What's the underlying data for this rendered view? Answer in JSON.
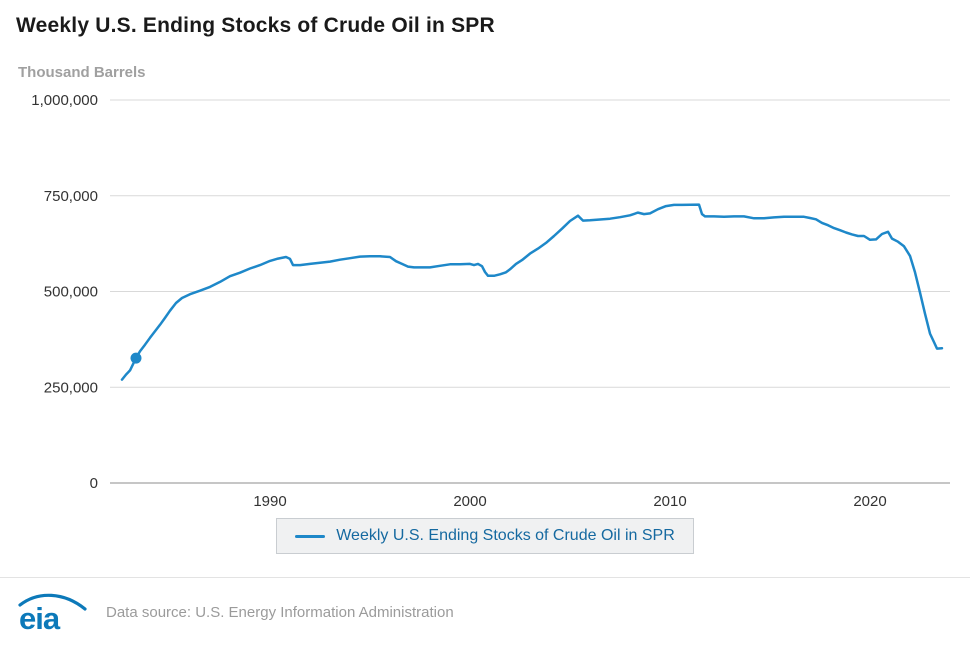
{
  "page": {
    "title": "Weekly U.S. Ending Stocks of Crude Oil in SPR",
    "y_axis_title": "Thousand Barrels"
  },
  "legend": {
    "label": "Weekly U.S. Ending Stocks of Crude Oil in SPR"
  },
  "footer": {
    "logo_text": "eia",
    "source_text": "Data source: U.S. Energy Information Administration"
  },
  "colors": {
    "line": "#1e88c9",
    "grid": "#d9d9d9",
    "axis": "#8c8c8c",
    "tick_text": "#333333",
    "legend_text": "#1569a0",
    "legend_bg": "#f0f1f2",
    "legend_border": "#c9cdd1",
    "muted_text": "#9b9b9b",
    "logo_blue": "#0c79b9"
  },
  "chart_data": {
    "type": "line",
    "title": "Weekly U.S. Ending Stocks of Crude Oil in SPR",
    "xlabel": "",
    "ylabel": "Thousand Barrels",
    "xlim": [
      1982,
      2024
    ],
    "ylim": [
      0,
      1000000
    ],
    "grid": "horizontal",
    "legend_position": "bottom",
    "x_ticks": [
      "1990",
      "2000",
      "2010",
      "2020"
    ],
    "x_tick_values": [
      1990,
      2000,
      2010,
      2020
    ],
    "y_ticks": [
      {
        "value": 0,
        "label": "0"
      },
      {
        "value": 250000,
        "label": "250,000"
      },
      {
        "value": 500000,
        "label": "500,000"
      },
      {
        "value": 750000,
        "label": "750,000"
      },
      {
        "value": 1000000,
        "label": "1,000,000"
      }
    ],
    "marker_point": {
      "year": 1983.3,
      "value": 326000
    },
    "series": [
      {
        "name": "Weekly U.S. Ending Stocks of Crude Oil in SPR",
        "color": "#1e88c9",
        "points": [
          [
            1982.6,
            270000
          ],
          [
            1982.8,
            283000
          ],
          [
            1983.0,
            294000
          ],
          [
            1983.3,
            326000
          ],
          [
            1983.5,
            344000
          ],
          [
            1983.75,
            361000
          ],
          [
            1984.0,
            379000
          ],
          [
            1984.25,
            396000
          ],
          [
            1984.5,
            413000
          ],
          [
            1984.75,
            431000
          ],
          [
            1985.0,
            450000
          ],
          [
            1985.3,
            470000
          ],
          [
            1985.6,
            483000
          ],
          [
            1986.0,
            493000
          ],
          [
            1986.5,
            502000
          ],
          [
            1987.0,
            512000
          ],
          [
            1987.5,
            525000
          ],
          [
            1988.0,
            540000
          ],
          [
            1988.5,
            549000
          ],
          [
            1989.0,
            560000
          ],
          [
            1989.5,
            569000
          ],
          [
            1990.0,
            580000
          ],
          [
            1990.4,
            586000
          ],
          [
            1990.8,
            590000
          ],
          [
            1991.0,
            585000
          ],
          [
            1991.15,
            569000
          ],
          [
            1991.5,
            569000
          ],
          [
            1992.0,
            572000
          ],
          [
            1992.5,
            575000
          ],
          [
            1993.0,
            578000
          ],
          [
            1993.5,
            583000
          ],
          [
            1994.0,
            587000
          ],
          [
            1994.5,
            591000
          ],
          [
            1995.0,
            592000
          ],
          [
            1995.5,
            592000
          ],
          [
            1996.0,
            590000
          ],
          [
            1996.3,
            579000
          ],
          [
            1996.6,
            572000
          ],
          [
            1996.9,
            565000
          ],
          [
            1997.2,
            563000
          ],
          [
            1997.6,
            563000
          ],
          [
            1998.0,
            563000
          ],
          [
            1998.5,
            567000
          ],
          [
            1999.0,
            571000
          ],
          [
            1999.5,
            571000
          ],
          [
            2000.0,
            572000
          ],
          [
            2000.2,
            569000
          ],
          [
            2000.4,
            572000
          ],
          [
            2000.6,
            566000
          ],
          [
            2000.75,
            551000
          ],
          [
            2000.9,
            541000
          ],
          [
            2001.2,
            541000
          ],
          [
            2001.5,
            545000
          ],
          [
            2001.8,
            550000
          ],
          [
            2002.0,
            558000
          ],
          [
            2002.3,
            572000
          ],
          [
            2002.6,
            582000
          ],
          [
            2003.0,
            599000
          ],
          [
            2003.4,
            612000
          ],
          [
            2003.8,
            627000
          ],
          [
            2004.2,
            645000
          ],
          [
            2004.6,
            664000
          ],
          [
            2005.0,
            684000
          ],
          [
            2005.4,
            698000
          ],
          [
            2005.65,
            685000
          ],
          [
            2006.0,
            686000
          ],
          [
            2006.5,
            688000
          ],
          [
            2007.0,
            690000
          ],
          [
            2007.5,
            694000
          ],
          [
            2008.0,
            699000
          ],
          [
            2008.4,
            706000
          ],
          [
            2008.7,
            702000
          ],
          [
            2009.0,
            704000
          ],
          [
            2009.4,
            715000
          ],
          [
            2009.8,
            723000
          ],
          [
            2010.2,
            726000
          ],
          [
            2010.6,
            726000
          ],
          [
            2011.0,
            726500
          ],
          [
            2011.45,
            727000
          ],
          [
            2011.6,
            702000
          ],
          [
            2011.75,
            696000
          ],
          [
            2012.2,
            696000
          ],
          [
            2012.7,
            695000
          ],
          [
            2013.2,
            696000
          ],
          [
            2013.7,
            696000
          ],
          [
            2014.2,
            691000
          ],
          [
            2014.7,
            691000
          ],
          [
            2015.2,
            693500
          ],
          [
            2015.7,
            695000
          ],
          [
            2016.2,
            695000
          ],
          [
            2016.7,
            695000
          ],
          [
            2017.0,
            692000
          ],
          [
            2017.3,
            688500
          ],
          [
            2017.6,
            679000
          ],
          [
            2017.9,
            673000
          ],
          [
            2018.2,
            665500
          ],
          [
            2018.5,
            660000
          ],
          [
            2018.8,
            654000
          ],
          [
            2019.1,
            649000
          ],
          [
            2019.4,
            645000
          ],
          [
            2019.7,
            644800
          ],
          [
            2020.0,
            635000
          ],
          [
            2020.3,
            636000
          ],
          [
            2020.6,
            650000
          ],
          [
            2020.9,
            656000
          ],
          [
            2021.1,
            638000
          ],
          [
            2021.4,
            630000
          ],
          [
            2021.7,
            618000
          ],
          [
            2022.0,
            593000
          ],
          [
            2022.25,
            550000
          ],
          [
            2022.5,
            497000
          ],
          [
            2022.75,
            442000
          ],
          [
            2023.0,
            390000
          ],
          [
            2023.2,
            368000
          ],
          [
            2023.35,
            351000
          ],
          [
            2023.6,
            352000
          ]
        ]
      }
    ]
  }
}
